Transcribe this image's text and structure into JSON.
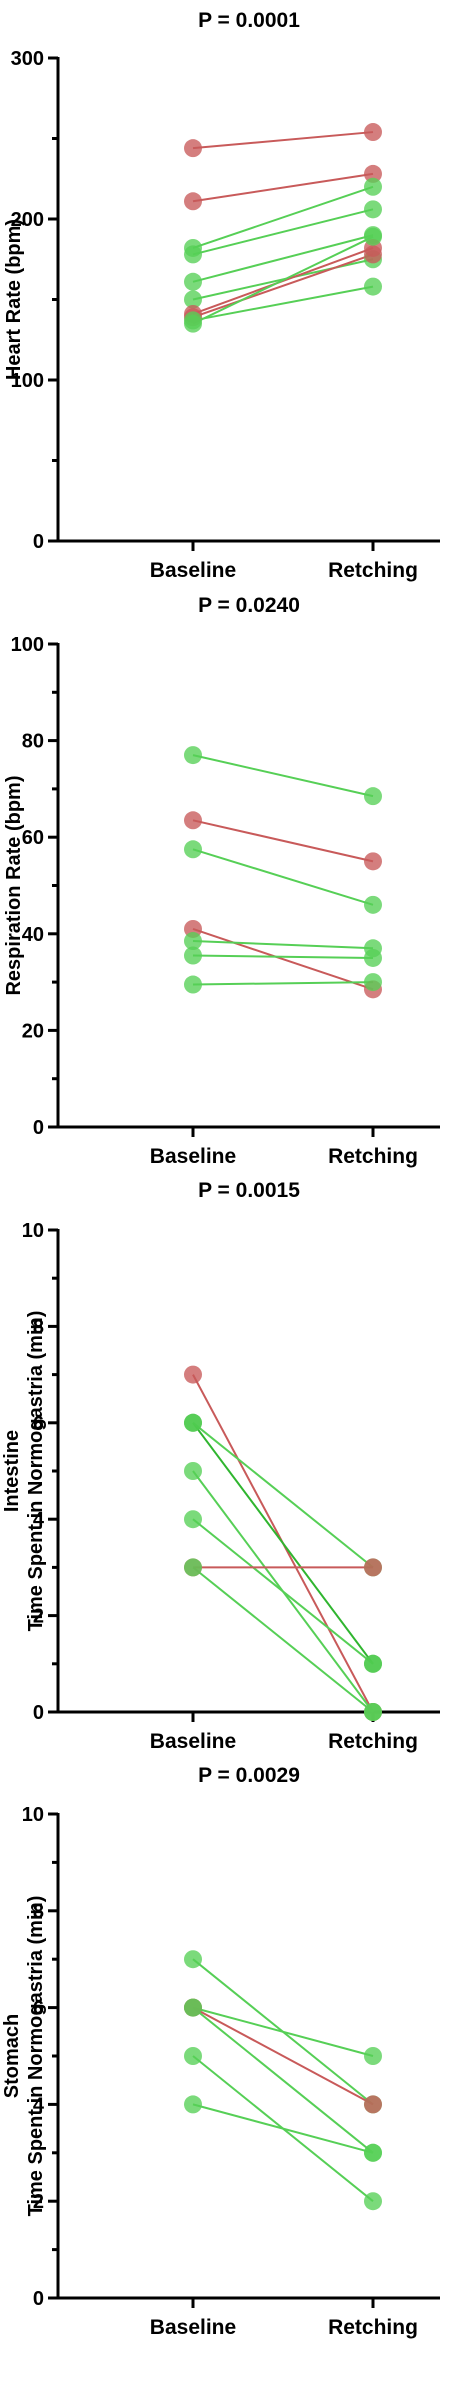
{
  "colors": {
    "green": "#56cf56",
    "green_dark": "#2fb52f",
    "red": "#c85a5a",
    "red_dot": "#d15e5e",
    "brown": "#9c5a2e"
  },
  "chart_data": [
    {
      "type": "scatter",
      "title": "P = 0.0001",
      "ylabel": [
        "Heart Rate (bpm)"
      ],
      "categories": [
        "Baseline",
        "Retching"
      ],
      "ylim": [
        0,
        300
      ],
      "yticks": [
        0,
        100,
        200,
        300
      ],
      "series": [
        {
          "values": [
            244,
            254
          ],
          "color": "red"
        },
        {
          "values": [
            211,
            228
          ],
          "color": "red"
        },
        {
          "values": [
            182,
            220
          ],
          "color": "green"
        },
        {
          "values": [
            178,
            206
          ],
          "color": "green"
        },
        {
          "values": [
            161,
            190
          ],
          "color": "green"
        },
        {
          "values": [
            150,
            175
          ],
          "color": "green"
        },
        {
          "values": [
            141,
            182
          ],
          "color": "red"
        },
        {
          "values": [
            139,
            178
          ],
          "color": "red"
        },
        {
          "values": [
            135,
            189
          ],
          "color": "green"
        },
        {
          "values": [
            137,
            158
          ],
          "color": "green"
        }
      ]
    },
    {
      "type": "scatter",
      "title": "P = 0.0240",
      "ylabel": [
        "Respiration Rate (bpm)"
      ],
      "categories": [
        "Baseline",
        "Retching"
      ],
      "ylim": [
        0,
        100
      ],
      "yticks": [
        0,
        20,
        40,
        60,
        80,
        100
      ],
      "series": [
        {
          "values": [
            77,
            68.5
          ],
          "color": "green"
        },
        {
          "values": [
            63.5,
            55
          ],
          "color": "red"
        },
        {
          "values": [
            57.5,
            46
          ],
          "color": "green"
        },
        {
          "values": [
            41,
            28.5
          ],
          "color": "red"
        },
        {
          "values": [
            38.5,
            37
          ],
          "color": "green"
        },
        {
          "values": [
            35.5,
            35
          ],
          "color": "green"
        },
        {
          "values": [
            29.5,
            30
          ],
          "color": "green"
        }
      ]
    },
    {
      "type": "scatter",
      "title": "P = 0.0015",
      "ylabel": [
        "Intestine",
        "Time Spent in Normogastria (min)"
      ],
      "categories": [
        "Baseline",
        "Retching"
      ],
      "ylim": [
        0,
        10
      ],
      "yticks": [
        0,
        2,
        4,
        6,
        8,
        10
      ],
      "series": [
        {
          "values": [
            7,
            0
          ],
          "color": "red"
        },
        {
          "values": [
            6,
            1
          ],
          "color": "green_dark"
        },
        {
          "values": [
            6,
            3
          ],
          "color": "green"
        },
        {
          "values": [
            5,
            0
          ],
          "color": "green"
        },
        {
          "values": [
            4,
            1
          ],
          "color": "green"
        },
        {
          "values": [
            3,
            3
          ],
          "color": "red"
        },
        {
          "values": [
            3,
            0
          ],
          "color": "green"
        }
      ]
    },
    {
      "type": "scatter",
      "title": "P = 0.0029",
      "ylabel": [
        "Stomach",
        "Time Spent in Normogastria (min)"
      ],
      "categories": [
        "Baseline",
        "Retching"
      ],
      "ylim": [
        0,
        10
      ],
      "yticks": [
        0,
        2,
        4,
        6,
        8,
        10
      ],
      "series": [
        {
          "values": [
            7,
            4
          ],
          "color": "green"
        },
        {
          "values": [
            6,
            5
          ],
          "color": "green"
        },
        {
          "values": [
            6,
            4
          ],
          "color": "red"
        },
        {
          "values": [
            6,
            3
          ],
          "color": "green"
        },
        {
          "values": [
            5,
            2
          ],
          "color": "green"
        },
        {
          "values": [
            4,
            3
          ],
          "color": "green"
        }
      ]
    }
  ]
}
